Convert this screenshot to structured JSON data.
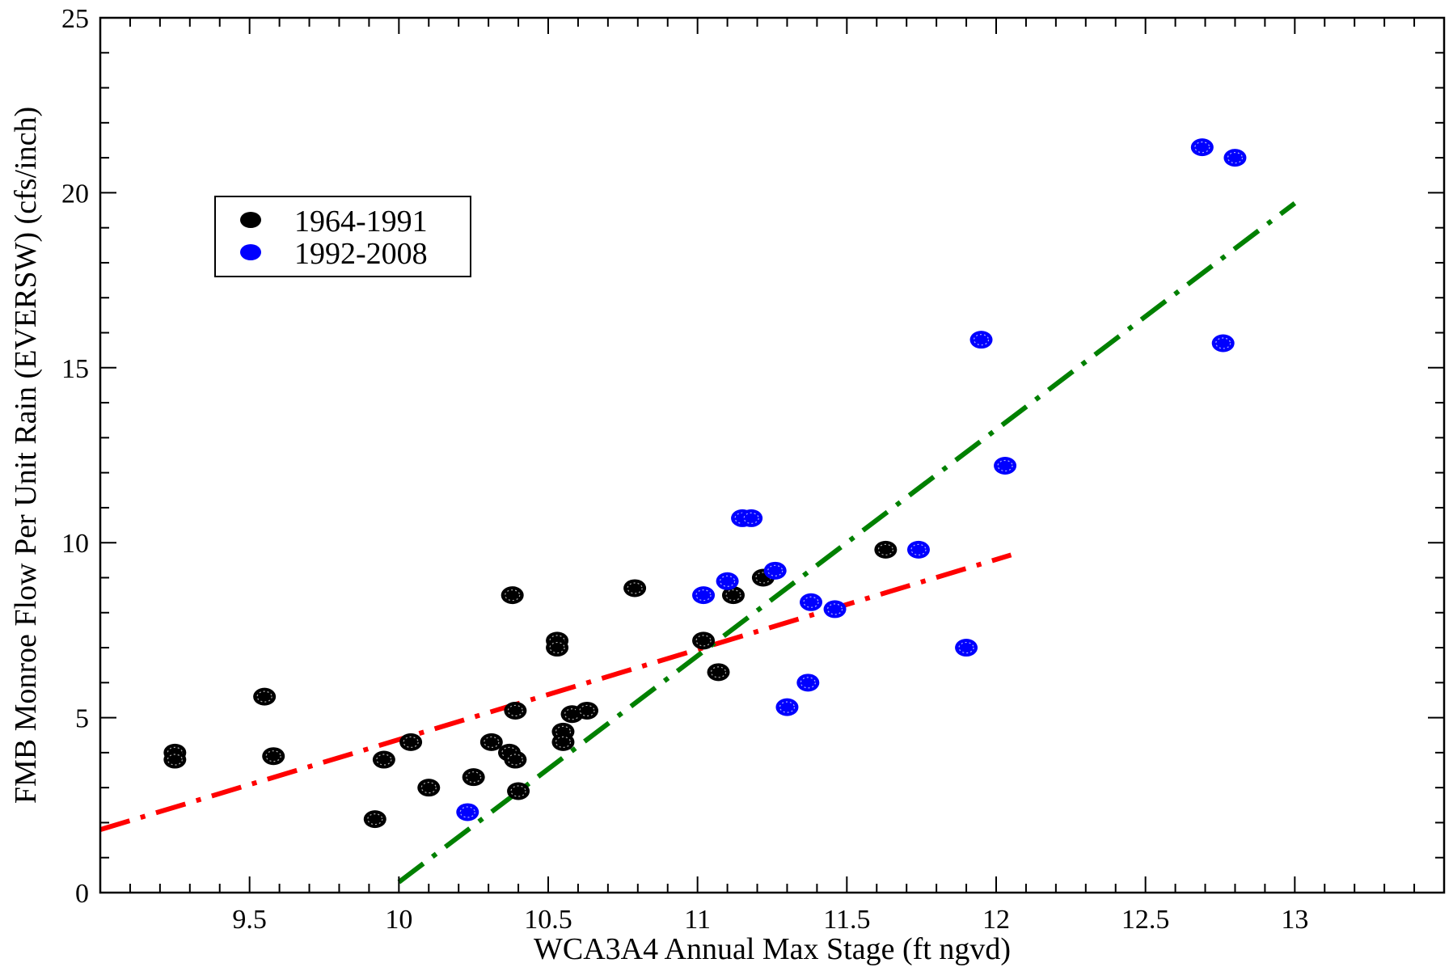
{
  "chart_data": {
    "type": "scatter",
    "title": "",
    "xlabel": "WCA3A4 Annual Max Stage (ft ngvd)",
    "ylabel": "FMB Monroe Flow Per Unit Rain (EVERSW) (cfs/inch)",
    "xlim": [
      9.0,
      13.5
    ],
    "ylim": [
      0,
      25
    ],
    "x_ticks": [
      "9.5",
      "10",
      "10.5",
      "11",
      "11.5",
      "12",
      "12.5",
      "13"
    ],
    "x_tick_values": [
      9.5,
      10,
      10.5,
      11,
      11.5,
      12,
      12.5,
      13
    ],
    "y_ticks": [
      "0",
      "5",
      "10",
      "15",
      "20",
      "25"
    ],
    "y_tick_values": [
      0,
      5,
      10,
      15,
      20,
      25
    ],
    "grid": false,
    "legend_position": "upper-left",
    "series": [
      {
        "name": "1964-1991",
        "color": "#000000",
        "points": [
          [
            9.25,
            4.0
          ],
          [
            9.25,
            3.8
          ],
          [
            9.55,
            5.6
          ],
          [
            9.58,
            3.9
          ],
          [
            9.92,
            2.1
          ],
          [
            9.95,
            3.8
          ],
          [
            10.04,
            4.3
          ],
          [
            10.1,
            3.0
          ],
          [
            10.25,
            3.3
          ],
          [
            10.31,
            4.3
          ],
          [
            10.37,
            4.0
          ],
          [
            10.38,
            8.5
          ],
          [
            10.39,
            5.2
          ],
          [
            10.39,
            3.8
          ],
          [
            10.4,
            2.9
          ],
          [
            10.53,
            7.2
          ],
          [
            10.53,
            7.0
          ],
          [
            10.55,
            4.6
          ],
          [
            10.55,
            4.3
          ],
          [
            10.58,
            5.1
          ],
          [
            10.63,
            5.2
          ],
          [
            10.79,
            8.7
          ],
          [
            11.02,
            7.2
          ],
          [
            11.07,
            6.3
          ],
          [
            11.12,
            8.5
          ],
          [
            11.22,
            9.0
          ],
          [
            11.63,
            9.8
          ]
        ]
      },
      {
        "name": "1992-2008",
        "color": "#0000ff",
        "points": [
          [
            10.23,
            2.3
          ],
          [
            11.02,
            8.5
          ],
          [
            11.1,
            8.9
          ],
          [
            11.15,
            10.7
          ],
          [
            11.18,
            10.7
          ],
          [
            11.26,
            9.2
          ],
          [
            11.3,
            5.3
          ],
          [
            11.37,
            6.0
          ],
          [
            11.38,
            8.3
          ],
          [
            11.46,
            8.1
          ],
          [
            11.74,
            9.8
          ],
          [
            11.9,
            7.0
          ],
          [
            11.95,
            15.8
          ],
          [
            12.03,
            12.2
          ],
          [
            12.69,
            21.3
          ],
          [
            12.76,
            15.7
          ],
          [
            12.8,
            21.0
          ]
        ]
      }
    ],
    "trendlines": [
      {
        "color": "#ff0000",
        "x": [
          9.0,
          12.05
        ],
        "y": [
          1.8,
          9.65
        ]
      },
      {
        "color": "#008000",
        "x": [
          10.0,
          13.0
        ],
        "y": [
          0.3,
          19.7
        ]
      }
    ]
  }
}
